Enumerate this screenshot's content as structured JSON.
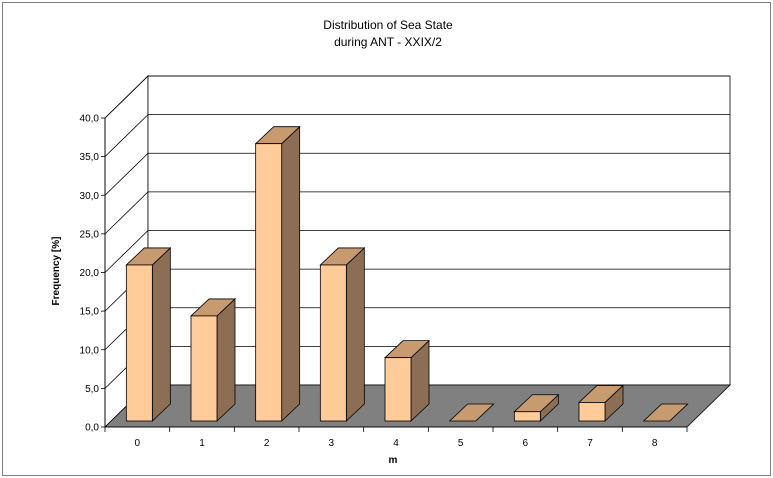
{
  "chart_data": {
    "type": "bar",
    "title": "Distribution of Sea State",
    "subtitle": "during ANT - XXIX/2",
    "xlabel": "m",
    "ylabel": "Frequency [%]",
    "categories": [
      "0",
      "1",
      "2",
      "3",
      "4",
      "5",
      "6",
      "7",
      "8"
    ],
    "values": [
      20.2,
      13.6,
      35.9,
      20.2,
      8.2,
      0.0,
      1.2,
      2.4,
      0.0
    ],
    "ylim": [
      0,
      40
    ],
    "yticks": [
      "0,0",
      "5,0",
      "10,0",
      "15,0",
      "20,0",
      "25,0",
      "30,0",
      "35,0",
      "40,0"
    ],
    "grid": true,
    "legend": "none",
    "style": "3d-column",
    "colors": {
      "bar_front": "#ffcc99",
      "bar_side": "#8c6e54",
      "bar_top": "#c89a70",
      "floor": "#808080",
      "grid": "#000000"
    }
  }
}
